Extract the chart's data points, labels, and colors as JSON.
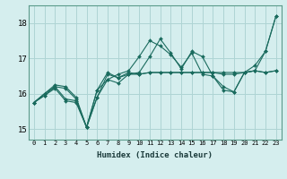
{
  "title": "",
  "xlabel": "Humidex (Indice chaleur)",
  "ylabel": "",
  "bg_color": "#d5eeee",
  "grid_color": "#aed4d4",
  "line_color": "#1a6b5e",
  "xlim": [
    -0.5,
    23.5
  ],
  "ylim": [
    14.7,
    18.5
  ],
  "yticks": [
    15,
    16,
    17,
    18
  ],
  "xticks": [
    0,
    1,
    2,
    3,
    4,
    5,
    6,
    7,
    8,
    9,
    10,
    11,
    12,
    13,
    14,
    15,
    16,
    17,
    18,
    19,
    20,
    21,
    22,
    23
  ],
  "series": [
    [
      15.75,
      15.95,
      16.2,
      15.85,
      15.8,
      15.05,
      15.9,
      16.55,
      16.45,
      16.6,
      16.55,
      16.6,
      16.6,
      16.6,
      16.6,
      16.6,
      16.6,
      16.6,
      16.6,
      16.6,
      16.6,
      16.65,
      16.6,
      16.65
    ],
    [
      15.75,
      16.0,
      16.2,
      16.15,
      15.85,
      15.05,
      16.1,
      16.4,
      16.55,
      16.65,
      17.05,
      17.5,
      17.35,
      17.1,
      16.75,
      17.15,
      16.55,
      16.5,
      16.2,
      16.05,
      16.6,
      16.65,
      17.2,
      18.2
    ],
    [
      15.75,
      16.0,
      16.25,
      16.2,
      15.9,
      15.05,
      16.1,
      16.6,
      16.45,
      16.55,
      16.6,
      17.05,
      17.55,
      17.15,
      16.7,
      17.2,
      17.05,
      16.5,
      16.1,
      16.05,
      16.6,
      16.8,
      17.2,
      18.2
    ],
    [
      15.75,
      15.95,
      16.15,
      15.8,
      15.75,
      15.05,
      15.9,
      16.4,
      16.3,
      16.55,
      16.55,
      16.6,
      16.6,
      16.6,
      16.6,
      16.6,
      16.6,
      16.6,
      16.55,
      16.55,
      16.6,
      16.65,
      16.6,
      16.65
    ]
  ]
}
